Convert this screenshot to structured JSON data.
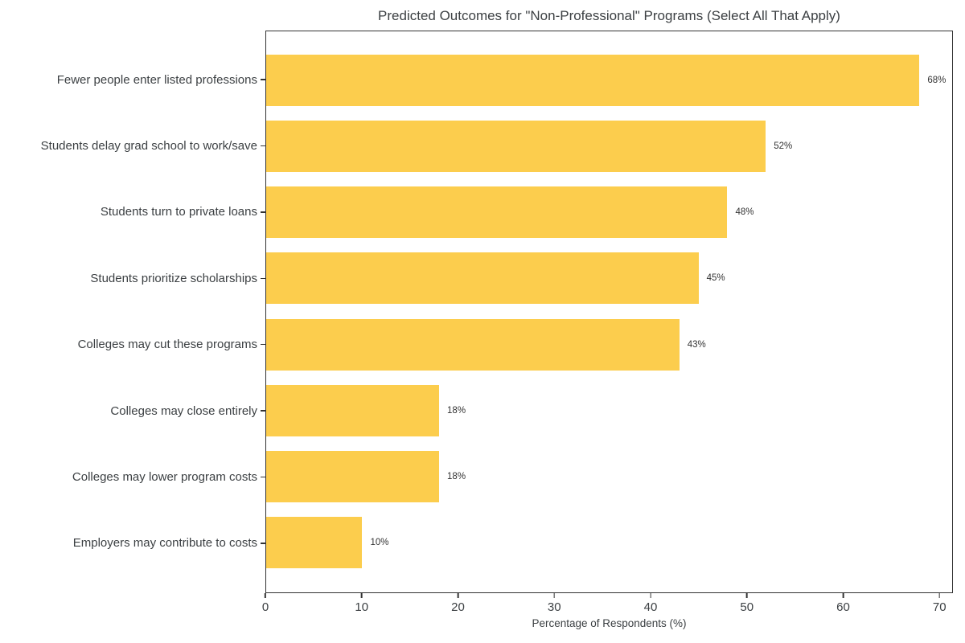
{
  "chart_data": {
    "type": "bar",
    "orientation": "horizontal",
    "title": "Predicted Outcomes for \"Non-Professional\" Programs (Select All That Apply)",
    "categories": [
      "Fewer people enter listed professions",
      "Students delay grad school to work/save",
      "Students turn to private loans",
      "Students prioritize scholarships",
      "Colleges may cut these programs",
      "Colleges may close entirely",
      "Colleges may lower program costs",
      "Employers may contribute to costs"
    ],
    "values": [
      68,
      52,
      48,
      45,
      43,
      18,
      18,
      10
    ],
    "value_label_suffix": "%",
    "xlabel": "Percentage of Respondents (%)",
    "xticks": [
      0,
      10,
      20,
      30,
      40,
      50,
      60,
      70
    ],
    "xlim": [
      0,
      71.4
    ],
    "grid": false,
    "legend": "none",
    "bar_color": "#fccd4d",
    "text_color": "#3c4043",
    "spine_color": "#333333"
  }
}
